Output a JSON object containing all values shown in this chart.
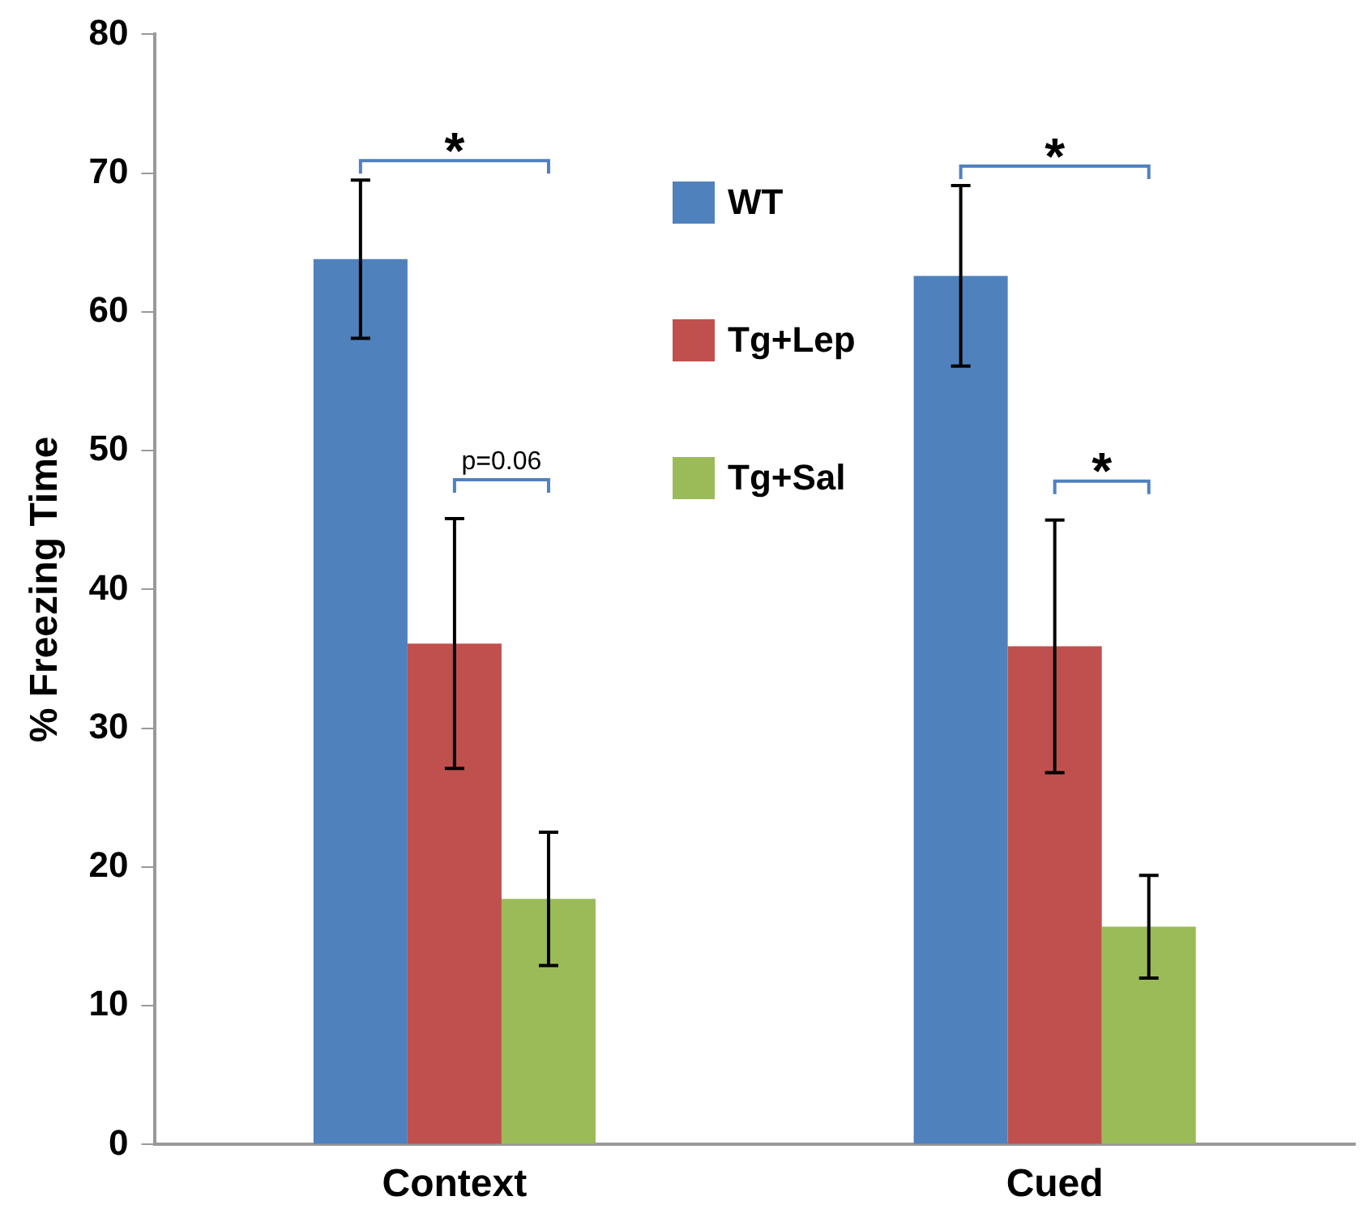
{
  "chart_data": {
    "type": "bar",
    "ylabel": "% Freezing Time",
    "categories": [
      "Context",
      "Cued"
    ],
    "series": [
      {
        "name": "WT",
        "color": "#4f81bd",
        "values": [
          63.8,
          62.6
        ],
        "errors": [
          5.7,
          6.5
        ]
      },
      {
        "name": "Tg+Lep",
        "color": "#c0504d",
        "values": [
          36.1,
          35.9
        ],
        "errors": [
          9,
          9.1
        ]
      },
      {
        "name": "Tg+Sal",
        "color": "#9bbb59",
        "values": [
          17.7,
          15.7
        ],
        "errors": [
          4.8,
          3.7
        ]
      }
    ],
    "ylim": [
      0,
      80
    ],
    "yticks": [
      0,
      10,
      20,
      30,
      40,
      50,
      60,
      70,
      80
    ],
    "grid": false,
    "legend": "top",
    "annotations": [
      "*",
      "p=0.06",
      "*",
      "*"
    ]
  }
}
